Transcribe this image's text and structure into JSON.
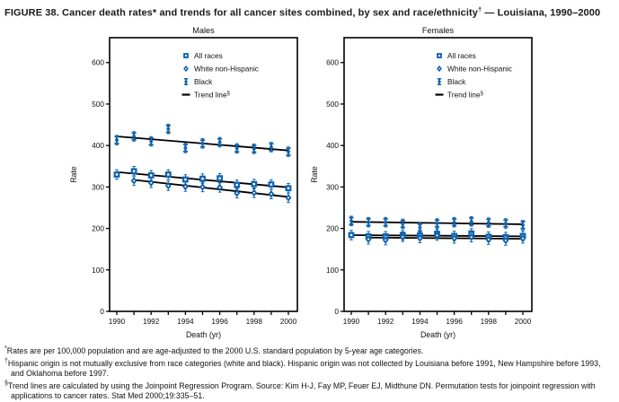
{
  "figure": {
    "title_main": "FIGURE 38. Cancer death rates* and trends for all cancer sites combined, by sex and race/ethnicity",
    "title_dagger": "†",
    "title_suffix": " — Louisiana, 1990–2000"
  },
  "colors": {
    "marker_blue": "#0F63AD",
    "trend_black": "#000000",
    "axis_black": "#000000"
  },
  "legend": [
    {
      "label": "All races",
      "marker": "square"
    },
    {
      "label": "White non-Hispanic",
      "marker": "diamond"
    },
    {
      "label": "Black",
      "marker": "asterisk"
    },
    {
      "label": "Trend line",
      "sup": "§",
      "marker": "dash"
    }
  ],
  "chart_data": [
    {
      "type": "scatter",
      "title": "Males",
      "xlabel": "Death (yr)",
      "ylabel": "Rate",
      "x": [
        1990,
        1991,
        1992,
        1993,
        1994,
        1995,
        1996,
        1997,
        1998,
        1999,
        2000
      ],
      "labeled_xticks": [
        1990,
        1992,
        1994,
        1996,
        1998,
        2000
      ],
      "ylim": [
        0,
        660
      ],
      "yticks": [
        0,
        100,
        200,
        300,
        400,
        500,
        600
      ],
      "grid": false,
      "legend_position": "top-right-inside",
      "series": [
        {
          "name": "All races",
          "marker": "square",
          "values": [
            330,
            338,
            328,
            330,
            318,
            320,
            321,
            305,
            307,
            306,
            297
          ]
        },
        {
          "name": "White non-Hispanic",
          "marker": "diamond",
          "values": [
            null,
            315,
            310,
            303,
            301,
            300,
            299,
            285,
            286,
            283,
            274
          ]
        },
        {
          "name": "Black",
          "marker": "asterisk",
          "values": [
            413,
            422,
            410,
            440,
            394,
            405,
            408,
            393,
            392,
            396,
            385
          ]
        }
      ],
      "trend_lines": [
        {
          "series": "All races",
          "x": [
            1990,
            2000
          ],
          "y": [
            336,
            299
          ]
        },
        {
          "series": "White non-Hispanic",
          "x": [
            1991,
            2000
          ],
          "y": [
            317,
            276
          ]
        },
        {
          "series": "Black",
          "x": [
            1990,
            2000
          ],
          "y": [
            422,
            388
          ]
        }
      ]
    },
    {
      "type": "scatter",
      "title": "Females",
      "xlabel": "Death (yr)",
      "ylabel": "Rate",
      "x": [
        1990,
        1991,
        1992,
        1993,
        1994,
        1995,
        1996,
        1997,
        1998,
        1999,
        2000
      ],
      "labeled_xticks": [
        1990,
        1992,
        1994,
        1996,
        1998,
        2000
      ],
      "ylim": [
        0,
        660
      ],
      "yticks": [
        0,
        100,
        200,
        300,
        400,
        500,
        600
      ],
      "grid": false,
      "legend_position": "top-right-inside",
      "series": [
        {
          "name": "All races",
          "marker": "square",
          "values": [
            184,
            181,
            181,
            184,
            183,
            187,
            182,
            188,
            180,
            179,
            182
          ]
        },
        {
          "name": "White non-Hispanic",
          "marker": "diamond",
          "values": [
            null,
            174,
            172,
            180,
            177,
            183,
            176,
            179,
            173,
            171,
            176
          ]
        },
        {
          "name": "Black",
          "marker": "asterisk",
          "values": [
            218,
            215,
            215,
            211,
            202,
            212,
            215,
            217,
            214,
            212,
            208
          ]
        }
      ],
      "trend_lines": [
        {
          "series": "All races",
          "x": [
            1990,
            2000
          ],
          "y": [
            184,
            181
          ]
        },
        {
          "series": "White non-Hispanic",
          "x": [
            1991,
            2000
          ],
          "y": [
            178,
            175
          ]
        },
        {
          "series": "Black",
          "x": [
            1990,
            2000
          ],
          "y": [
            216,
            210
          ]
        }
      ]
    }
  ],
  "footnotes": [
    {
      "sup": "*",
      "text": "Rates are per 100,000 population and are age-adjusted to the 2000 U.S. standard population by 5-year age categories."
    },
    {
      "sup": "†",
      "text": "Hispanic origin is not mutually exclusive from race categories (white and black). Hispanic origin was not collected by Louisiana before 1991, New Hampshire before 1993, and Oklahoma before 1997."
    },
    {
      "sup": "§",
      "text": "Trend lines are calculated by using the Joinpoint Regression Program. Source: Kim H-J, Fay MP, Feuer EJ, Midthune DN. Permutation tests for joinpoint regression with applications to cancer rates. Stat Med 2000;19:335–51."
    }
  ]
}
